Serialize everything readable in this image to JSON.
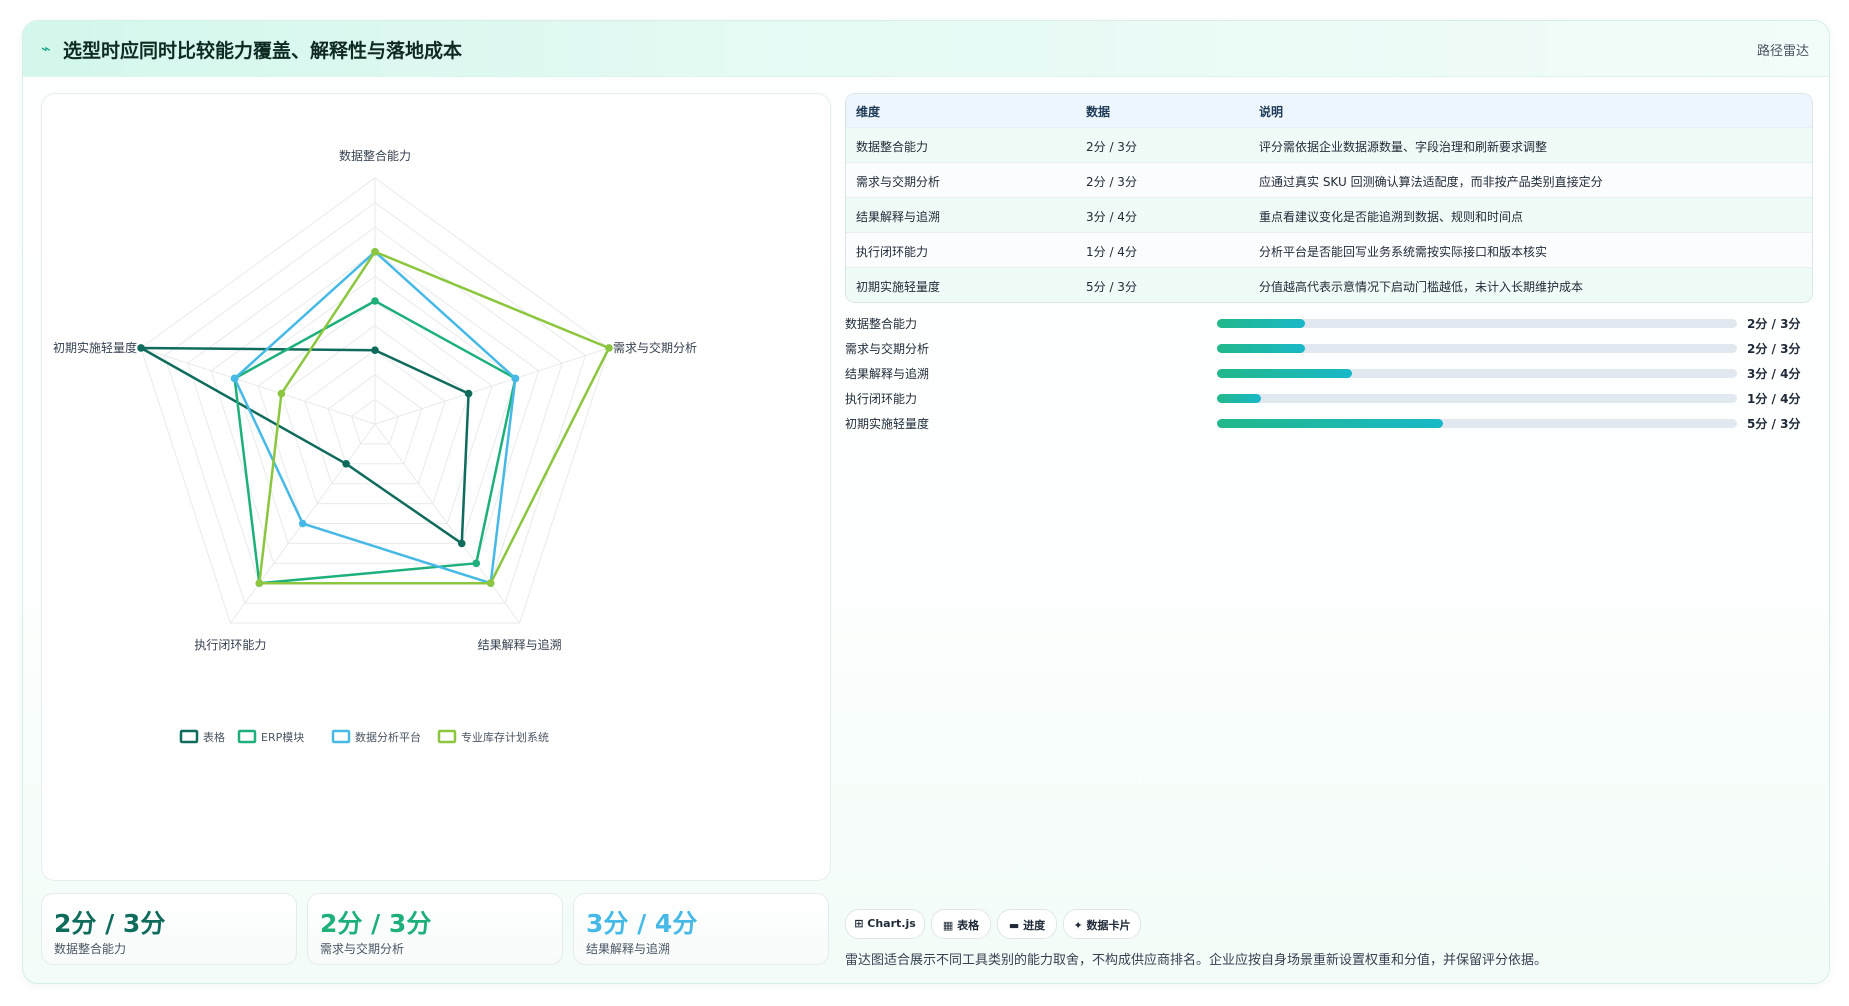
{
  "header": {
    "title": "选型时应同时比较能力覆盖、解释性与落地成本",
    "tag": "路径雷达"
  },
  "colors": {
    "series": [
      "#0f6b5c",
      "#1eb07a",
      "#47b9e6",
      "#8cc63f"
    ]
  },
  "chart_data": {
    "type": "radar",
    "axes": [
      "数据整合能力",
      "需求与交期分析",
      "结果解释与追溯",
      "执行闭环能力",
      "初期实施轻量度"
    ],
    "rmax": 5,
    "series": [
      {
        "name": "表格",
        "values": [
          1.5,
          2,
          3,
          1,
          5
        ]
      },
      {
        "name": "ERP模块",
        "values": [
          2.5,
          3,
          3.5,
          4,
          3
        ]
      },
      {
        "name": "数据分析平台",
        "values": [
          3.5,
          3,
          4,
          2.5,
          3
        ]
      },
      {
        "name": "专业库存计划系统",
        "values": [
          3.5,
          5,
          4,
          4,
          2
        ]
      }
    ],
    "legend": "bottom"
  },
  "stats": [
    {
      "value": "2分 / 3分",
      "label": "数据整合能力",
      "color": "#0f6b5c"
    },
    {
      "value": "2分 / 3分",
      "label": "需求与交期分析",
      "color": "#1eb07a"
    },
    {
      "value": "3分 / 4分",
      "label": "结果解释与追溯",
      "color": "#47b9e6"
    }
  ],
  "table": {
    "headers": [
      "维度",
      "数据",
      "说明"
    ],
    "rows": [
      [
        "数据整合能力",
        "2分 / 3分",
        "评分需依据企业数据源数量、字段治理和刷新要求调整"
      ],
      [
        "需求与交期分析",
        "2分 / 3分",
        "应通过真实 SKU 回测确认算法适配度，而非按产品类别直接定分"
      ],
      [
        "结果解释与追溯",
        "3分 / 4分",
        "重点看建议变化是否能追溯到数据、规则和时间点"
      ],
      [
        "执行闭环能力",
        "1分 / 4分",
        "分析平台是否能回写业务系统需按实际接口和版本核实"
      ],
      [
        "初期实施轻量度",
        "5分 / 3分",
        "分值越高代表示意情况下启动门槛越低，未计入长期维护成本"
      ]
    ]
  },
  "bars": [
    {
      "label": "数据整合能力",
      "value": "2分 / 3分",
      "fraction": 0.17
    },
    {
      "label": "需求与交期分析",
      "value": "2分 / 3分",
      "fraction": 0.17
    },
    {
      "label": "结果解释与追溯",
      "value": "3分 / 4分",
      "fraction": 0.26
    },
    {
      "label": "执行闭环能力",
      "value": "1分 / 4分",
      "fraction": 0.085
    },
    {
      "label": "初期实施轻量度",
      "value": "5分 / 3分",
      "fraction": 0.435
    }
  ],
  "chips": [
    "⊞ Chart.js",
    "▦ 表格",
    "▬ 进度",
    "✦ 数据卡片"
  ],
  "footnote": "雷达图适合展示不同工具类别的能力取舍，不构成供应商排名。企业应按自身场景重新设置权重和分值，并保留评分依据。"
}
